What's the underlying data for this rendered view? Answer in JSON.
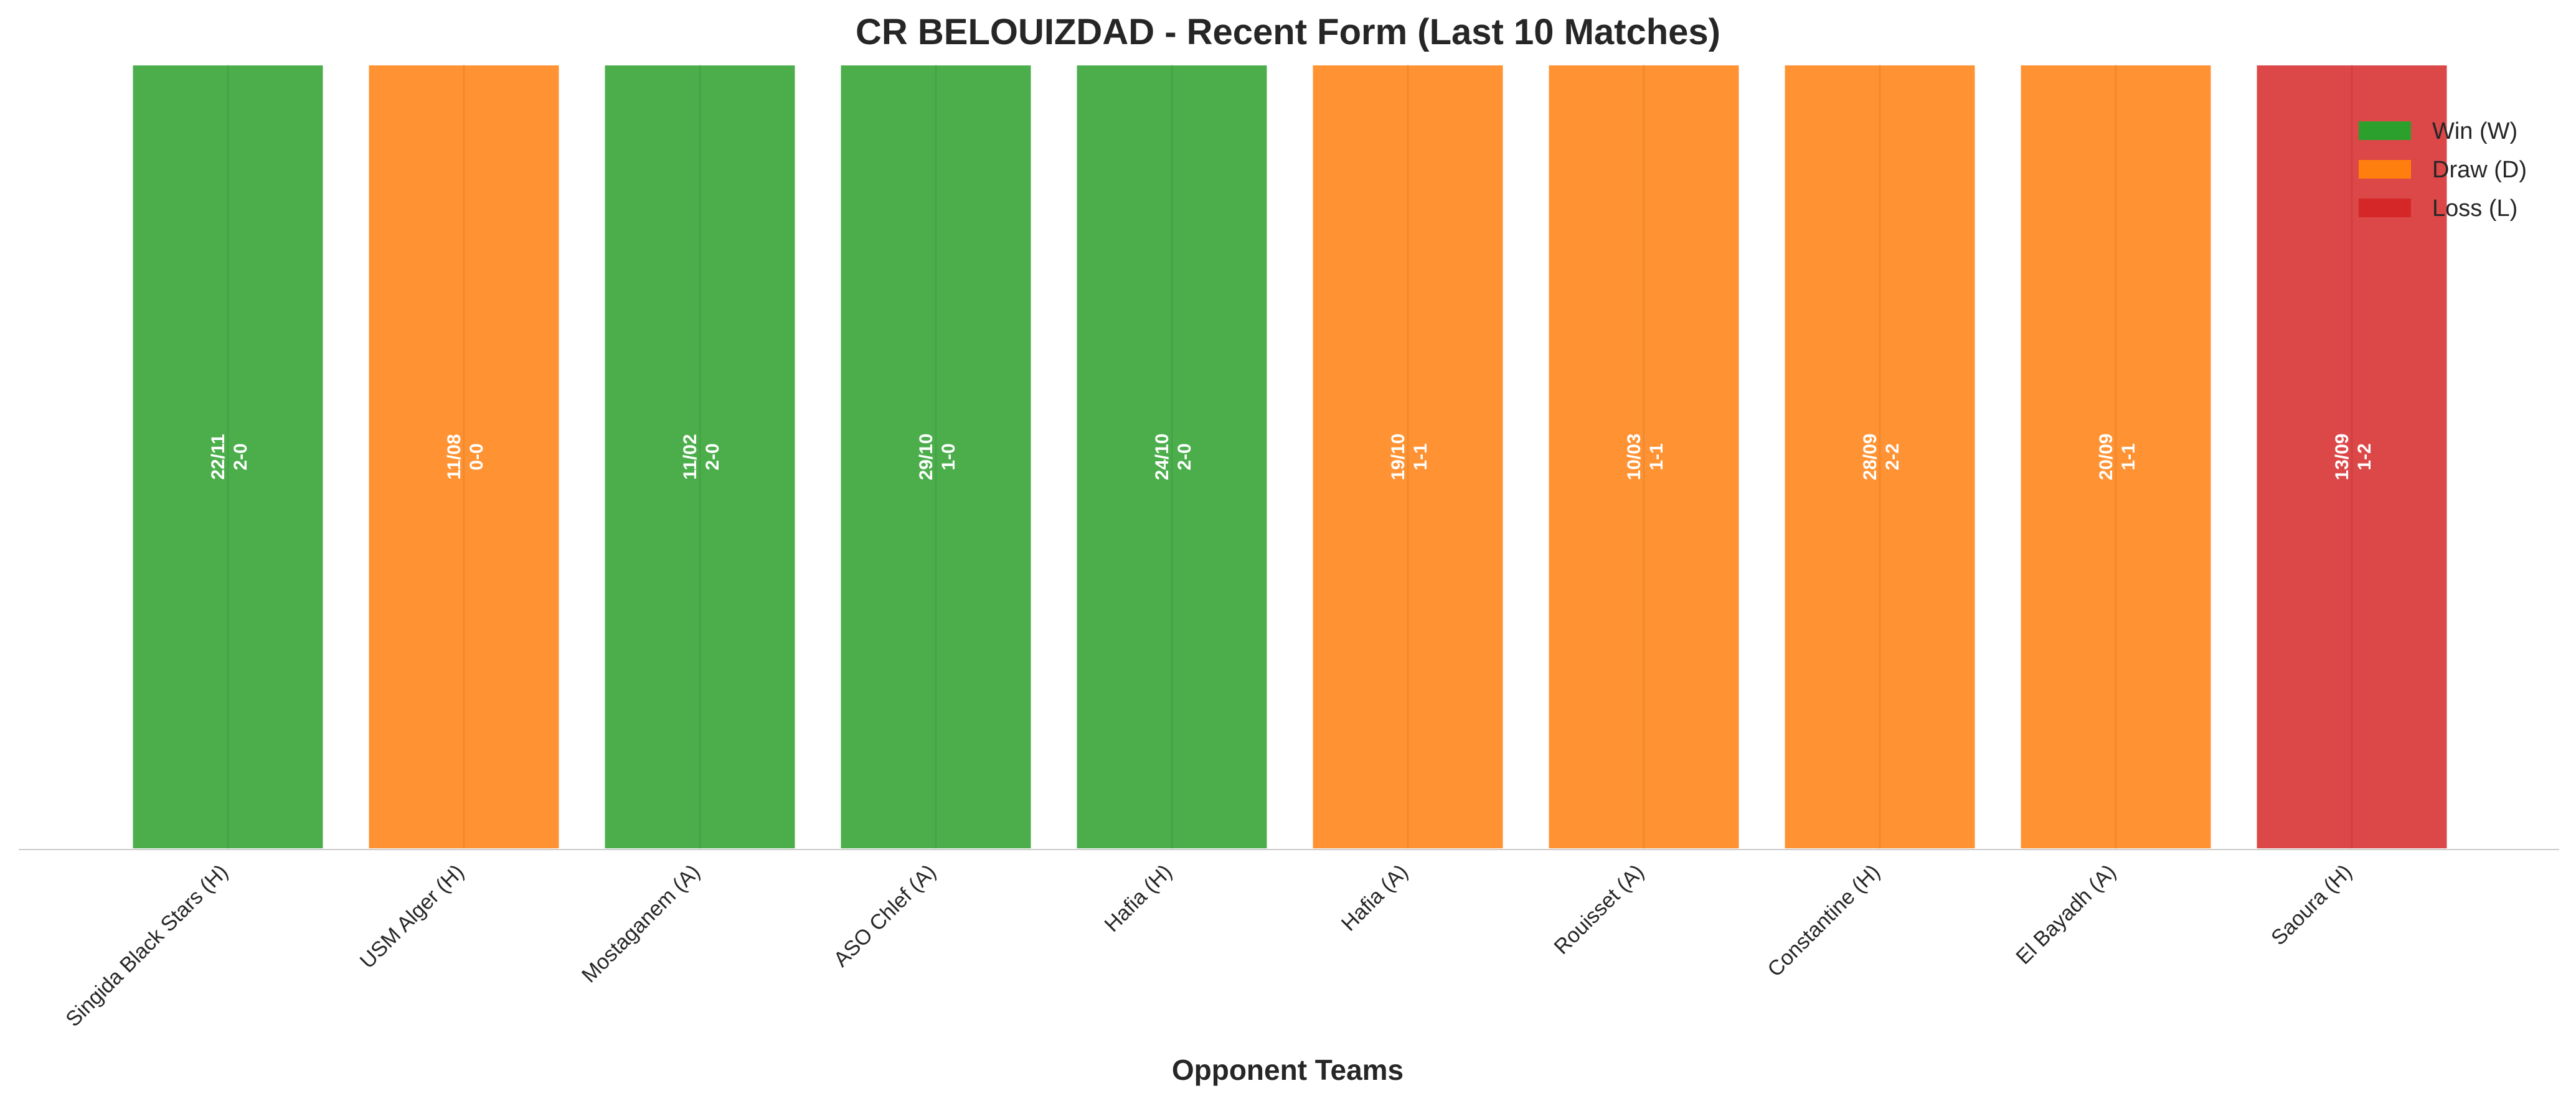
{
  "chart_data": {
    "type": "bar",
    "title": "CR BELOUIZDAD - Recent Form (Last 10 Matches)",
    "xlabel": "Opponent Teams",
    "ylabel": "",
    "categories": [
      "Singida Black Stars (H)",
      "USM Alger (H)",
      "Mostaganem (A)",
      "ASO Chlef (A)",
      "Hafia (H)",
      "Hafia (A)",
      "Rouisset (A)",
      "Constantine (H)",
      "El Bayadh (A)",
      "Saoura (H)"
    ],
    "results": [
      "W",
      "D",
      "W",
      "W",
      "W",
      "D",
      "D",
      "D",
      "D",
      "L"
    ],
    "values": [
      1,
      1,
      1,
      1,
      1,
      1,
      1,
      1,
      1,
      1
    ],
    "ylim": [
      0,
      1.05
    ],
    "dates": [
      "22/11",
      "11/08",
      "11/02",
      "29/10",
      "24/10",
      "19/10",
      "10/03",
      "28/09",
      "20/09",
      "13/09"
    ],
    "scores": [
      "2-0",
      "0-0",
      "2-0",
      "1-0",
      "2-0",
      "1-1",
      "1-1",
      "2-2",
      "1-1",
      "1-2"
    ],
    "legend": [
      {
        "key": "W",
        "label": "Win (W)",
        "color": "#2ca02c"
      },
      {
        "key": "D",
        "label": "Draw (D)",
        "color": "#ff7f0e"
      },
      {
        "key": "L",
        "label": "Loss (L)",
        "color": "#d62728"
      }
    ],
    "legend_position": "top-right",
    "grid": false
  }
}
